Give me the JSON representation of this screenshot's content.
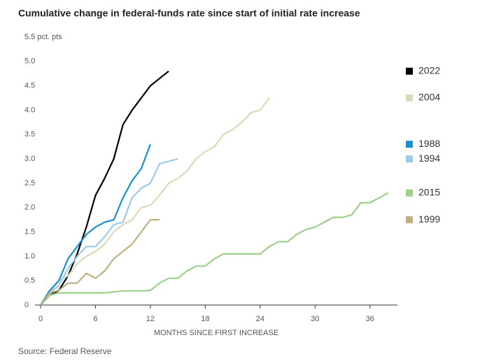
{
  "chart_data": {
    "type": "line",
    "title": "Cumulative change in federal-funds rate since start of initial rate increase",
    "x_label": "MONTHS SINCE FIRST INCREASE",
    "source": "Source: Federal Reserve",
    "x": [
      0,
      1,
      2,
      3,
      4,
      5,
      6,
      7,
      8,
      9,
      10,
      11,
      12,
      13,
      14,
      15,
      16,
      17,
      18,
      19,
      20,
      21,
      22,
      23,
      24,
      25,
      26,
      27,
      28,
      29,
      30,
      31,
      32,
      33,
      34,
      35,
      36,
      37,
      38
    ],
    "series": [
      {
        "name": "2022",
        "color": "#000000",
        "values": [
          0,
          0.2,
          0.3,
          0.6,
          1.05,
          1.6,
          2.25,
          2.6,
          3.0,
          3.7,
          4.0,
          4.25,
          4.5,
          4.65,
          4.8,
          null,
          null,
          null,
          null,
          null,
          null,
          null,
          null,
          null,
          null,
          null,
          null,
          null,
          null,
          null,
          null,
          null,
          null,
          null,
          null,
          null,
          null,
          null,
          null
        ]
      },
      {
        "name": "2004",
        "color": "#dcd9b8",
        "values": [
          0,
          0.25,
          0.5,
          0.6,
          0.85,
          1.0,
          1.1,
          1.25,
          1.5,
          1.65,
          1.75,
          2.0,
          2.05,
          2.25,
          2.5,
          2.6,
          2.75,
          3.0,
          3.15,
          3.25,
          3.5,
          3.6,
          3.75,
          3.95,
          4.0,
          4.25,
          null,
          null,
          null,
          null,
          null,
          null,
          null,
          null,
          null,
          null,
          null,
          null,
          null
        ]
      },
      {
        "name": "1988",
        "color": "#1a8fd0",
        "values": [
          0,
          0.3,
          0.5,
          0.95,
          1.2,
          1.45,
          1.6,
          1.7,
          1.75,
          2.2,
          2.55,
          2.8,
          3.3,
          null,
          null,
          null,
          null,
          null,
          null,
          null,
          null,
          null,
          null,
          null,
          null,
          null,
          null,
          null,
          null,
          null,
          null,
          null,
          null,
          null,
          null,
          null,
          null,
          null,
          null
        ]
      },
      {
        "name": "1994",
        "color": "#9ccbea",
        "values": [
          0,
          0.25,
          0.4,
          0.75,
          1.0,
          1.2,
          1.2,
          1.4,
          1.65,
          1.7,
          2.2,
          2.4,
          2.5,
          2.9,
          2.95,
          3.0,
          null,
          null,
          null,
          null,
          null,
          null,
          null,
          null,
          null,
          null,
          null,
          null,
          null,
          null,
          null,
          null,
          null,
          null,
          null,
          null,
          null,
          null,
          null
        ]
      },
      {
        "name": "2015",
        "color": "#9dd08a",
        "values": [
          0,
          0.2,
          0.25,
          0.25,
          0.25,
          0.25,
          0.25,
          0.25,
          0.27,
          0.29,
          0.29,
          0.29,
          0.3,
          0.45,
          0.55,
          0.55,
          0.7,
          0.8,
          0.8,
          0.95,
          1.05,
          1.05,
          1.05,
          1.05,
          1.05,
          1.2,
          1.3,
          1.3,
          1.45,
          1.55,
          1.6,
          1.7,
          1.8,
          1.8,
          1.85,
          2.1,
          2.1,
          2.2,
          2.3
        ]
      },
      {
        "name": "1999",
        "color": "#bfb27f",
        "values": [
          0,
          0.25,
          0.3,
          0.45,
          0.45,
          0.65,
          0.55,
          0.7,
          0.95,
          1.1,
          1.25,
          1.5,
          1.75,
          1.75,
          null,
          null,
          null,
          null,
          null,
          null,
          null,
          null,
          null,
          null,
          null,
          null,
          null,
          null,
          null,
          null,
          null,
          null,
          null,
          null,
          null,
          null,
          null,
          null,
          null
        ]
      }
    ],
    "xlim": [
      0,
      39
    ],
    "xticks": [
      0,
      6,
      12,
      18,
      24,
      30,
      36
    ],
    "ylim": [
      0,
      5.5
    ],
    "yticks": [
      0,
      0.5,
      {
        "value": 1,
        "label": "1.0"
      },
      1.5,
      {
        "value": 2,
        "label": "2.0"
      },
      2.5,
      {
        "value": 3,
        "label": "3.0"
      },
      3.5,
      {
        "value": 4,
        "label": "4.0"
      },
      4.5,
      {
        "value": 5,
        "label": "5.0"
      },
      {
        "value": 5.5,
        "label": "5.5 pct. pts"
      }
    ]
  }
}
